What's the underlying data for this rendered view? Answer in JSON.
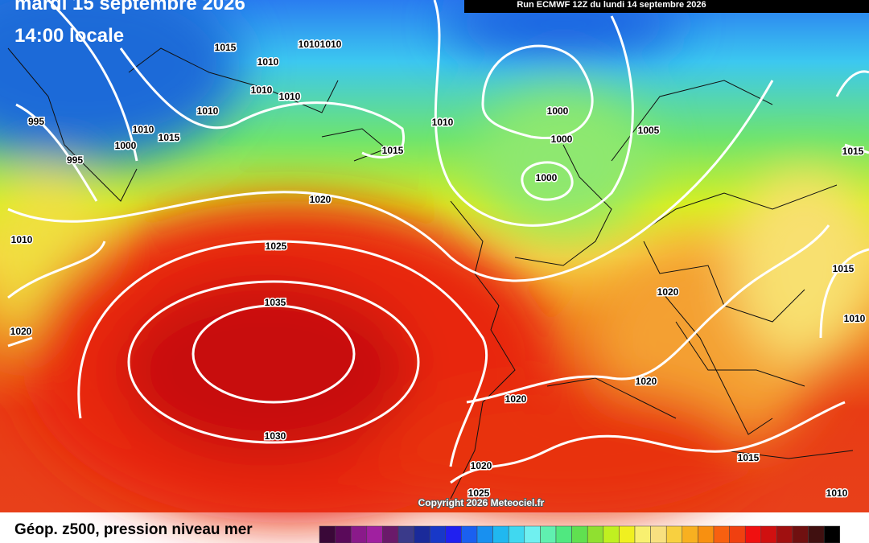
{
  "header": {
    "date": "mardi 15 septembre 2026",
    "time": "14:00 locale",
    "run": "Run ECMWF 12Z du lundi 14 septembre 2026"
  },
  "isobar_labels": [
    "1015",
    "1010",
    "1010",
    "1010",
    "1010",
    "1010",
    "1010",
    "1010",
    "1015",
    "1000",
    "995",
    "995",
    "1010",
    "1015",
    "1000",
    "1000",
    "1000",
    "1005",
    "1015",
    "1020",
    "1010",
    "1025",
    "1035",
    "1020",
    "1030",
    "1020",
    "1015",
    "1010",
    "1020",
    "1020",
    "1015",
    "1020",
    "1025",
    "1010"
  ],
  "copyright": "Copyright 2026 Meteociel.fr",
  "legend": {
    "title": "Géop. z500, pression niveau mer"
  }
}
